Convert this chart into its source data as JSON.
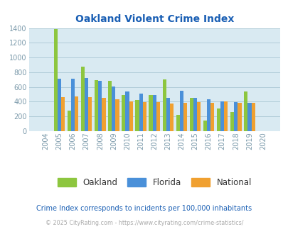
{
  "title": "Oakland Violent Crime Index",
  "years": [
    2004,
    2005,
    2006,
    2007,
    2008,
    2009,
    2010,
    2011,
    2012,
    2013,
    2014,
    2015,
    2016,
    2017,
    2018,
    2019,
    2020
  ],
  "oakland": [
    0,
    1390,
    275,
    880,
    690,
    685,
    490,
    420,
    490,
    700,
    220,
    455,
    140,
    305,
    260,
    535,
    0
  ],
  "florida": [
    0,
    710,
    710,
    725,
    685,
    610,
    540,
    510,
    485,
    455,
    545,
    455,
    430,
    405,
    390,
    380,
    0
  ],
  "national": [
    0,
    465,
    475,
    465,
    450,
    430,
    405,
    390,
    390,
    370,
    380,
    390,
    385,
    400,
    380,
    380,
    0
  ],
  "oakland_color": "#8dc63f",
  "florida_color": "#4a90d9",
  "national_color": "#f0a030",
  "bg_color": "#d9eaf2",
  "title_color": "#1a5fb4",
  "grid_color": "#b0ccd8",
  "ylim": [
    0,
    1400
  ],
  "yticks": [
    0,
    200,
    400,
    600,
    800,
    1000,
    1200,
    1400
  ],
  "footnote1": "Crime Index corresponds to incidents per 100,000 inhabitants",
  "footnote2": "© 2025 CityRating.com - https://www.cityrating.com/crime-statistics/",
  "legend_labels": [
    "Oakland",
    "Florida",
    "National"
  ]
}
